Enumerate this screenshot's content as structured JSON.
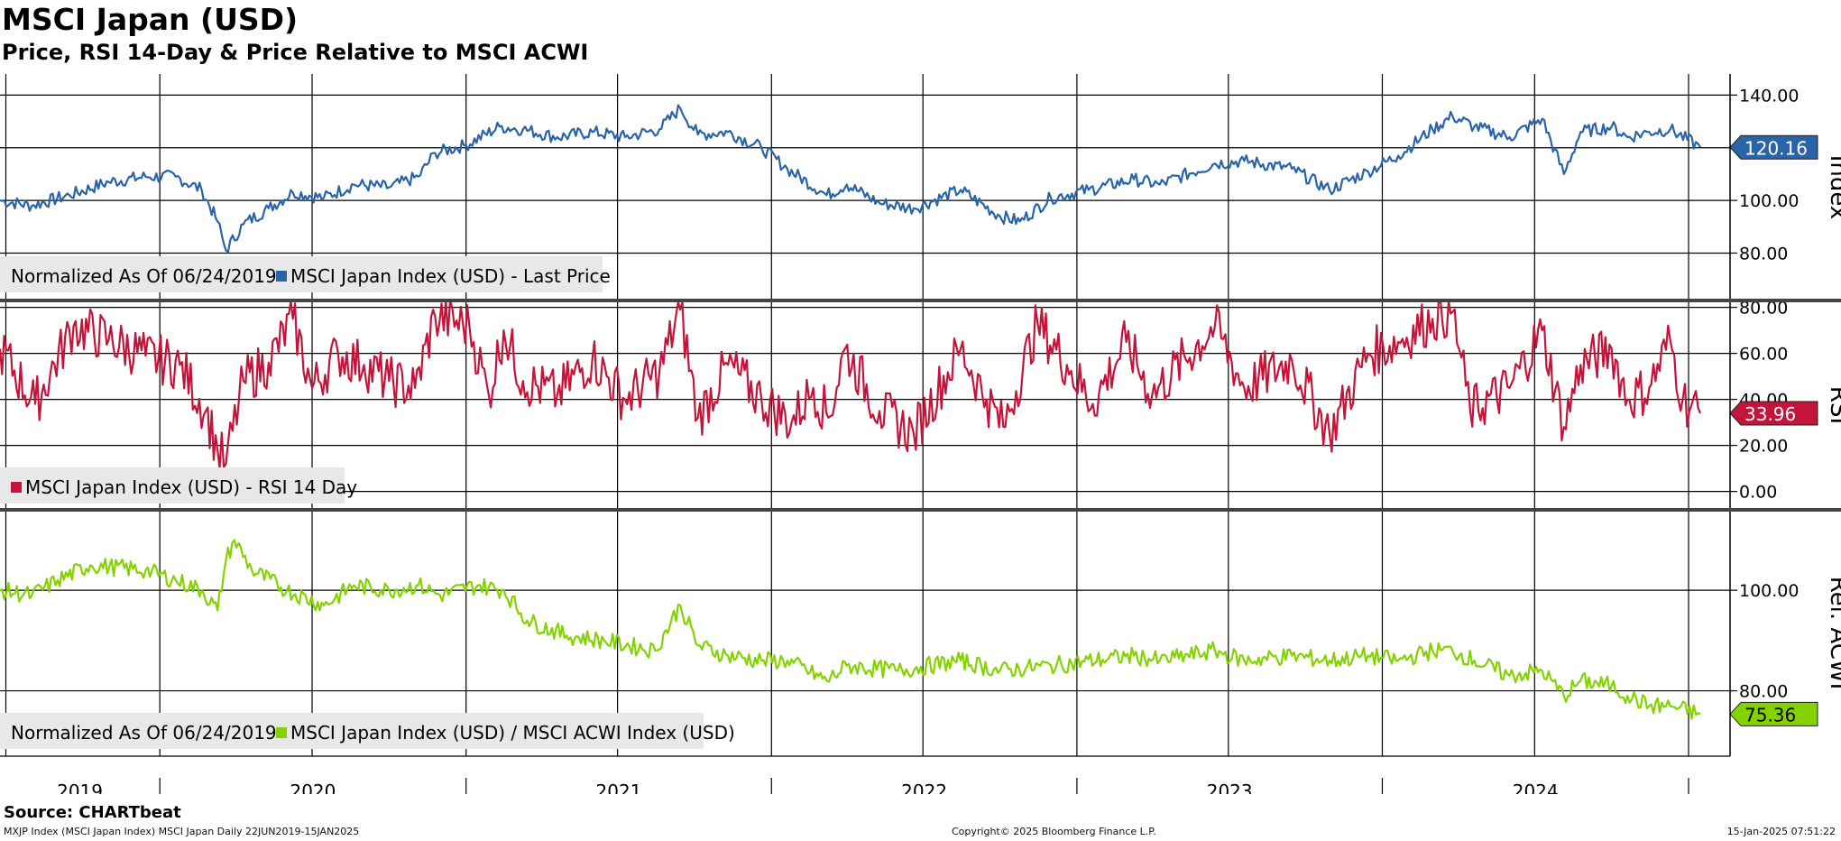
{
  "header": {
    "title": "MSCI Japan (USD)",
    "subtitle": "Price, RSI 14-Day & Price Relative to MSCI ACWI"
  },
  "footer": {
    "source": "Source: CHARTbeat",
    "series_info": "MXJP Index (MSCI Japan Index) MSCI Japan  Daily 22JUN2019-15JAN2025",
    "copyright": "Copyright© 2025 Bloomberg Finance L.P.",
    "timestamp": "15-Jan-2025 07:51:22"
  },
  "colors": {
    "price": "#2a64a8",
    "rsi": "#c4143a",
    "relative": "#84d300",
    "grid": "#000000"
  },
  "chart_data": [
    {
      "type": "line",
      "panel": "price",
      "ylabel": "Index",
      "ylim": [
        62,
        148
      ],
      "yticks": [
        80,
        100,
        120,
        140
      ],
      "ytick_labels": [
        "80.00",
        "100.00",
        "120.00",
        "140.00"
      ],
      "legend_note": "Normalized As Of 06/24/2019",
      "series": [
        {
          "name": "MSCI Japan Index (USD) - Last Price",
          "last_value_label": "120.16",
          "points": [
            [
              "2019-06-24",
              100
            ],
            [
              "2019-08-01",
              98
            ],
            [
              "2019-09-15",
              102
            ],
            [
              "2019-11-01",
              107
            ],
            [
              "2019-12-15",
              109
            ],
            [
              "2020-01-20",
              109
            ],
            [
              "2020-02-20",
              104
            ],
            [
              "2020-03-10",
              92
            ],
            [
              "2020-03-20",
              81
            ],
            [
              "2020-04-10",
              91
            ],
            [
              "2020-05-10",
              97
            ],
            [
              "2020-06-08",
              103
            ],
            [
              "2020-07-15",
              101
            ],
            [
              "2020-08-20",
              106
            ],
            [
              "2020-10-01",
              105
            ],
            [
              "2020-11-05",
              109
            ],
            [
              "2020-11-25",
              118
            ],
            [
              "2021-01-01",
              121
            ],
            [
              "2021-02-10",
              128
            ],
            [
              "2021-03-10",
              127
            ],
            [
              "2021-04-20",
              124
            ],
            [
              "2021-06-01",
              126
            ],
            [
              "2021-07-10",
              124
            ],
            [
              "2021-08-20",
              127
            ],
            [
              "2021-09-14",
              135
            ],
            [
              "2021-10-05",
              125
            ],
            [
              "2021-11-10",
              126
            ],
            [
              "2021-12-20",
              120
            ],
            [
              "2022-01-20",
              112
            ],
            [
              "2022-03-08",
              102
            ],
            [
              "2022-04-01",
              106
            ],
            [
              "2022-05-10",
              99
            ],
            [
              "2022-06-20",
              97
            ],
            [
              "2022-08-15",
              104
            ],
            [
              "2022-10-01",
              94
            ],
            [
              "2022-10-25",
              92
            ],
            [
              "2022-12-01",
              101
            ],
            [
              "2023-01-15",
              104
            ],
            [
              "2023-03-10",
              108
            ],
            [
              "2023-04-10",
              106
            ],
            [
              "2023-06-15",
              114
            ],
            [
              "2023-07-20",
              115
            ],
            [
              "2023-09-15",
              112
            ],
            [
              "2023-10-30",
              104
            ],
            [
              "2023-12-15",
              111
            ],
            [
              "2024-01-20",
              117
            ],
            [
              "2024-03-01",
              127
            ],
            [
              "2024-03-25",
              132
            ],
            [
              "2024-04-20",
              128
            ],
            [
              "2024-06-01",
              124
            ],
            [
              "2024-07-10",
              131
            ],
            [
              "2024-08-05",
              110
            ],
            [
              "2024-08-25",
              126
            ],
            [
              "2024-10-01",
              128
            ],
            [
              "2024-10-20",
              124
            ],
            [
              "2024-11-15",
              126
            ],
            [
              "2024-12-10",
              127
            ],
            [
              "2025-01-15",
              120.16
            ]
          ]
        }
      ]
    },
    {
      "type": "line",
      "panel": "rsi",
      "ylabel": "RSI",
      "ylim": [
        -8,
        83
      ],
      "yticks": [
        0,
        20,
        40,
        60,
        80
      ],
      "ytick_labels": [
        "0.00",
        "20.00",
        "40.00",
        "60.00",
        "80.00"
      ],
      "series": [
        {
          "name": "MSCI Japan Index (USD) - RSI 14 Day",
          "last_value_label": "33.96",
          "points": [
            [
              "2019-06-24",
              62
            ],
            [
              "2019-08-05",
              38
            ],
            [
              "2019-09-20",
              72
            ],
            [
              "2019-11-01",
              66
            ],
            [
              "2019-12-15",
              59
            ],
            [
              "2020-01-25",
              55
            ],
            [
              "2020-02-25",
              35
            ],
            [
              "2020-03-10",
              18
            ],
            [
              "2020-03-20",
              12
            ],
            [
              "2020-04-10",
              48
            ],
            [
              "2020-05-10",
              56
            ],
            [
              "2020-06-08",
              75
            ],
            [
              "2020-07-01",
              45
            ],
            [
              "2020-08-01",
              60
            ],
            [
              "2020-09-01",
              55
            ],
            [
              "2020-10-01",
              48
            ],
            [
              "2020-11-01",
              45
            ],
            [
              "2020-11-25",
              76
            ],
            [
              "2021-01-05",
              72
            ],
            [
              "2021-01-28",
              42
            ],
            [
              "2021-02-15",
              70
            ],
            [
              "2021-03-10",
              48
            ],
            [
              "2021-04-20",
              42
            ],
            [
              "2021-06-01",
              58
            ],
            [
              "2021-07-10",
              40
            ],
            [
              "2021-08-20",
              52
            ],
            [
              "2021-09-14",
              79
            ],
            [
              "2021-10-05",
              32
            ],
            [
              "2021-11-10",
              55
            ],
            [
              "2021-12-20",
              40
            ],
            [
              "2022-01-25",
              30
            ],
            [
              "2022-02-20",
              45
            ],
            [
              "2022-03-10",
              32
            ],
            [
              "2022-03-30",
              62
            ],
            [
              "2022-05-10",
              35
            ],
            [
              "2022-06-20",
              25
            ],
            [
              "2022-08-15",
              62
            ],
            [
              "2022-09-15",
              40
            ],
            [
              "2022-10-05",
              28
            ],
            [
              "2022-11-15",
              73
            ],
            [
              "2022-12-20",
              55
            ],
            [
              "2023-01-20",
              38
            ],
            [
              "2023-03-01",
              65
            ],
            [
              "2023-04-01",
              42
            ],
            [
              "2023-06-15",
              72
            ],
            [
              "2023-07-20",
              45
            ],
            [
              "2023-09-15",
              57
            ],
            [
              "2023-10-30",
              25
            ],
            [
              "2023-12-15",
              60
            ],
            [
              "2024-01-20",
              65
            ],
            [
              "2024-03-01",
              75
            ],
            [
              "2024-03-25",
              78
            ],
            [
              "2024-04-15",
              35
            ],
            [
              "2024-06-01",
              45
            ],
            [
              "2024-07-10",
              70
            ],
            [
              "2024-08-05",
              28
            ],
            [
              "2024-08-25",
              55
            ],
            [
              "2024-10-01",
              62
            ],
            [
              "2024-10-20",
              40
            ],
            [
              "2024-11-15",
              45
            ],
            [
              "2024-12-10",
              66
            ],
            [
              "2024-12-25",
              40
            ],
            [
              "2025-01-15",
              33.96
            ]
          ]
        }
      ]
    },
    {
      "type": "line",
      "panel": "relative",
      "ylabel": "Rel. ACWI",
      "ylim": [
        67,
        116
      ],
      "yticks": [
        80,
        100
      ],
      "ytick_labels": [
        "80.00",
        "100.00"
      ],
      "legend_note": "Normalized As Of 06/24/2019",
      "series": [
        {
          "name": "MSCI Japan Index (USD) / MSCI ACWI Index (USD)",
          "last_value_label": "75.36",
          "points": [
            [
              "2019-06-24",
              100
            ],
            [
              "2019-08-01",
              99
            ],
            [
              "2019-09-01",
              102
            ],
            [
              "2019-10-10",
              105
            ],
            [
              "2019-12-15",
              104
            ],
            [
              "2020-01-20",
              102
            ],
            [
              "2020-02-20",
              100
            ],
            [
              "2020-03-10",
              96
            ],
            [
              "2020-03-20",
              106
            ],
            [
              "2020-03-30",
              110
            ],
            [
              "2020-04-20",
              104
            ],
            [
              "2020-06-01",
              100
            ],
            [
              "2020-07-15",
              97
            ],
            [
              "2020-08-20",
              101
            ],
            [
              "2020-10-01",
              100
            ],
            [
              "2020-11-05",
              101
            ],
            [
              "2020-12-01",
              99
            ],
            [
              "2021-01-15",
              101
            ],
            [
              "2021-02-15",
              100
            ],
            [
              "2021-03-15",
              94
            ],
            [
              "2021-05-01",
              91
            ],
            [
              "2021-06-15",
              90
            ],
            [
              "2021-08-15",
              88
            ],
            [
              "2021-09-14",
              97
            ],
            [
              "2021-10-05",
              89
            ],
            [
              "2021-11-10",
              87
            ],
            [
              "2021-12-20",
              86
            ],
            [
              "2022-01-20",
              86
            ],
            [
              "2022-03-08",
              82
            ],
            [
              "2022-04-01",
              85
            ],
            [
              "2022-06-01",
              84
            ],
            [
              "2022-08-15",
              86
            ],
            [
              "2022-10-01",
              84
            ],
            [
              "2022-12-01",
              85
            ],
            [
              "2023-03-10",
              87
            ],
            [
              "2023-04-10",
              86
            ],
            [
              "2023-06-15",
              88
            ],
            [
              "2023-07-20",
              86
            ],
            [
              "2023-09-15",
              87
            ],
            [
              "2023-10-30",
              86
            ],
            [
              "2023-12-15",
              87
            ],
            [
              "2024-01-20",
              86
            ],
            [
              "2024-03-01",
              88
            ],
            [
              "2024-03-25",
              88
            ],
            [
              "2024-04-20",
              86
            ],
            [
              "2024-06-01",
              83
            ],
            [
              "2024-07-10",
              84
            ],
            [
              "2024-08-05",
              79
            ],
            [
              "2024-08-25",
              82
            ],
            [
              "2024-10-01",
              81
            ],
            [
              "2024-10-20",
              79
            ],
            [
              "2024-11-15",
              77
            ],
            [
              "2024-12-10",
              77
            ],
            [
              "2025-01-15",
              75.36
            ]
          ]
        }
      ]
    }
  ],
  "x_axis": {
    "year_labels": [
      "2019",
      "2020",
      "2021",
      "2022",
      "2023",
      "2024"
    ],
    "range": [
      "2019-06-24",
      "2025-01-15"
    ]
  }
}
